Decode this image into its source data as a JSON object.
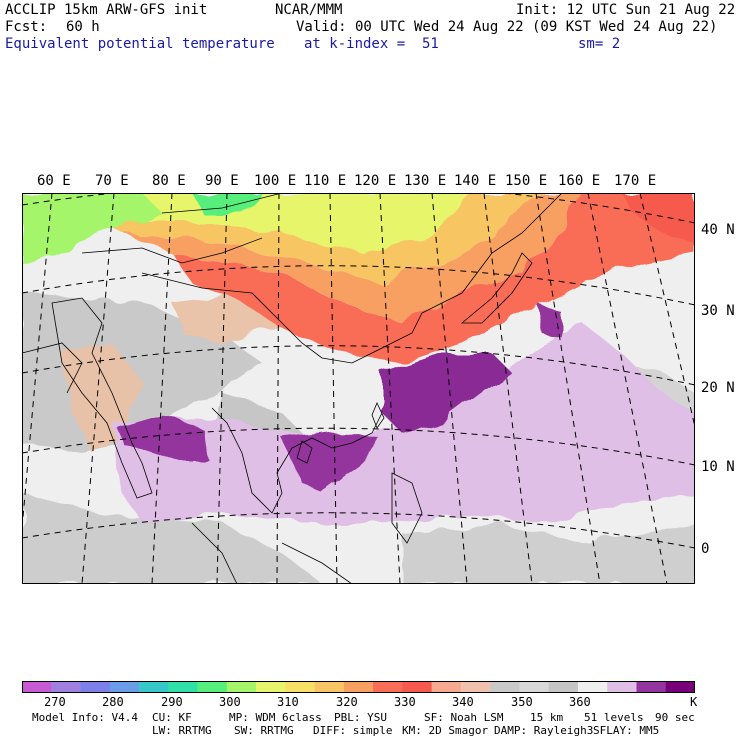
{
  "header": {
    "model": "ACCLIP 15km ARW-GFS init",
    "org": "NCAR/MMM",
    "init": "Init: 12 UTC Sun 21 Aug 22",
    "fcst_label": "Fcst:",
    "fcst_value": "60 h",
    "valid": "Valid: 00 UTC Wed 24 Aug 22 (09 KST Wed 24 Aug 22)",
    "field": "Equivalent potential temperature",
    "kindex": "at k-index =  51",
    "sm": "sm= 2"
  },
  "map": {
    "lon_labels": [
      "60 E",
      "70 E",
      "80 E",
      "90 E",
      "100 E",
      "110 E",
      "120 E",
      "130 E",
      "140 E",
      "150 E",
      "160 E",
      "170 E"
    ],
    "lat_labels": [
      "40 N",
      "30 N",
      "20 N",
      "10 N",
      "0"
    ]
  },
  "colorbar": {
    "colors": [
      "#c65bd3",
      "#9f7fe0",
      "#7c80e8",
      "#6a9de8",
      "#36c8c9",
      "#30e0a6",
      "#56ef7c",
      "#a4f56a",
      "#e6f56b",
      "#f6e065",
      "#f8c564",
      "#f8a062",
      "#f96c56",
      "#f65a4e",
      "#f7a98f",
      "#f0c2ae",
      "#c9c9c9",
      "#d8d8d8",
      "#c5c5c5",
      "#efefef",
      "#e0bfe6",
      "#94349e",
      "#770078"
    ],
    "ticks": [
      "270",
      "280",
      "290",
      "300",
      "310",
      "320",
      "330",
      "340",
      "350",
      "360",
      "K"
    ],
    "tick_values": [
      270,
      280,
      290,
      300,
      310,
      320,
      330,
      340,
      350,
      360
    ]
  },
  "footer": {
    "line1": [
      "Model Info: V4.4",
      "CU: KF",
      "MP: WDM 6class",
      "PBL: YSU",
      "SF: Noah LSM",
      "15 km",
      "51 levels",
      "90 sec"
    ],
    "line2": [
      "LW: RRTMG",
      "SW: RRTMG",
      "DIFF: simple",
      "KM: 2D Smagor",
      "DAMP: Rayleigh3",
      "SFLAY: MM5"
    ]
  }
}
